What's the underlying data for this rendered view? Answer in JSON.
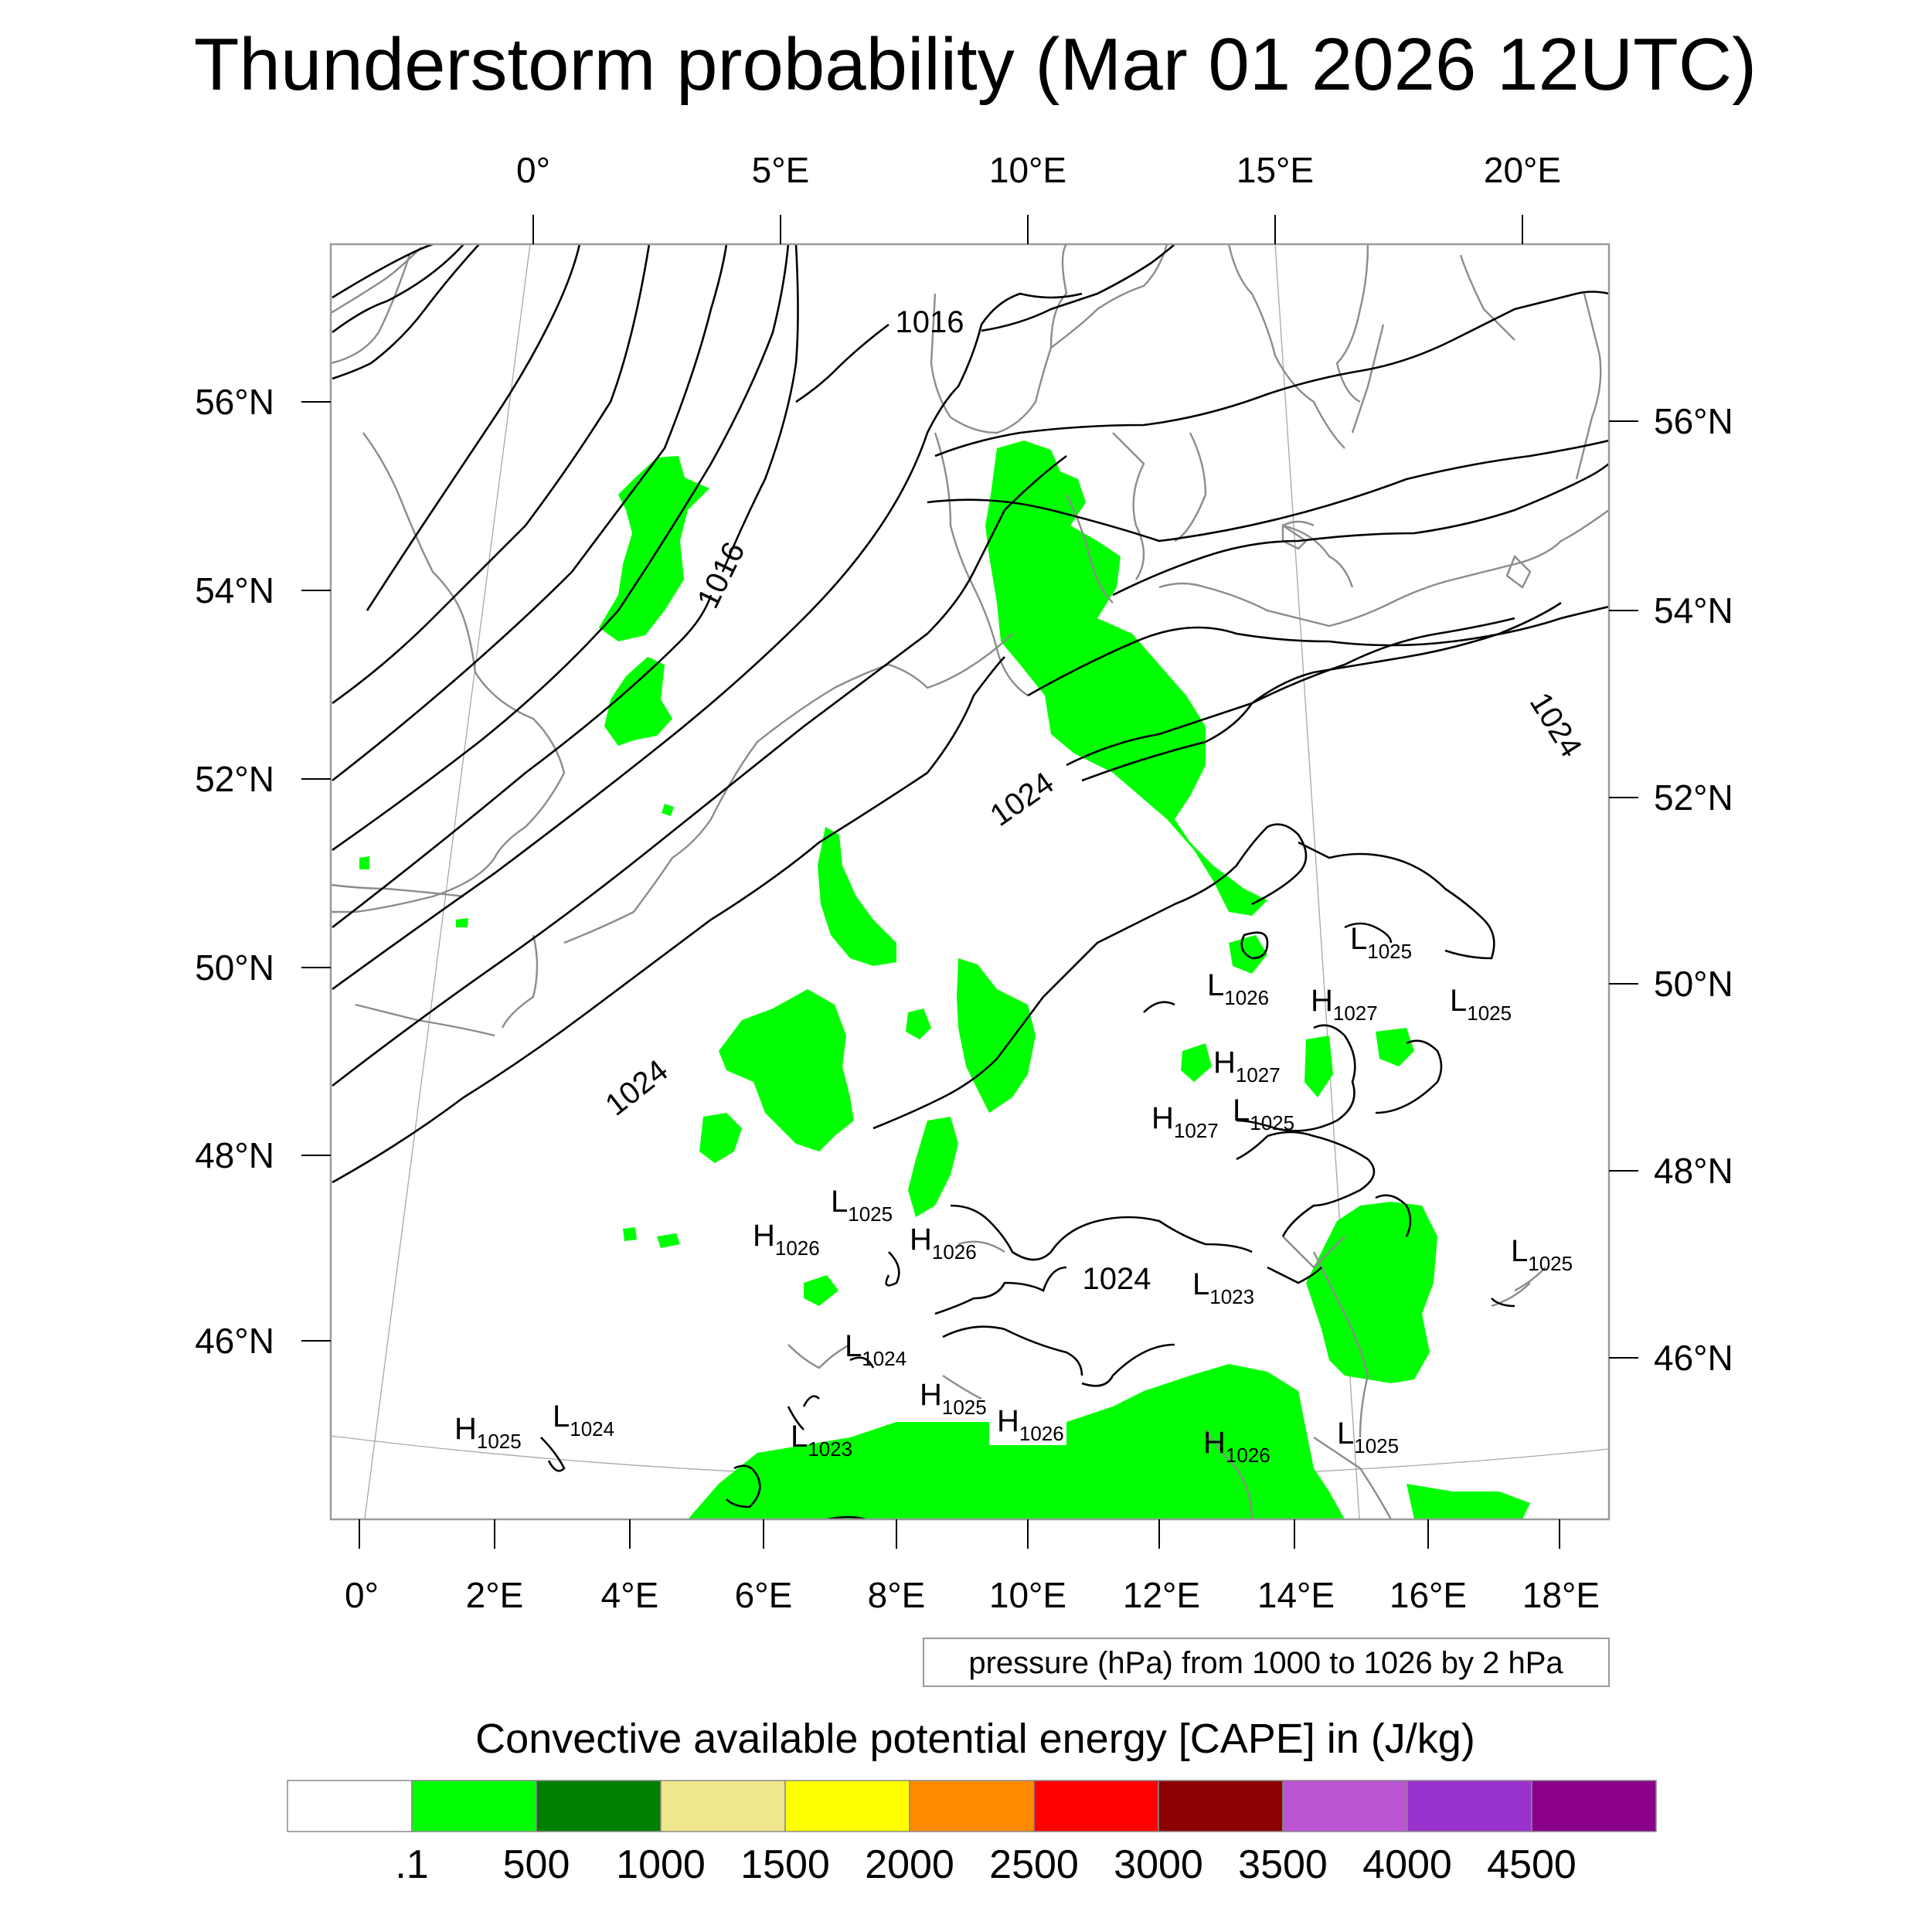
{
  "title": "Thunderstorm probability (Mar 01 2026 12UTC)",
  "map": {
    "top_longitude_labels": [
      "0°",
      "5°E",
      "10°E",
      "15°E",
      "20°E"
    ],
    "bottom_longitude_labels": [
      "0°",
      "2°E",
      "4°E",
      "6°E",
      "8°E",
      "10°E",
      "12°E",
      "14°E",
      "16°E",
      "18°E"
    ],
    "left_latitude_labels": [
      "56°N",
      "54°N",
      "52°N",
      "50°N",
      "48°N",
      "46°N"
    ],
    "right_latitude_labels": [
      "56°N",
      "54°N",
      "52°N",
      "50°N",
      "48°N",
      "46°N"
    ],
    "isobar_labels": [
      "1016",
      "1016",
      "1024",
      "1024",
      "1024",
      "1024"
    ],
    "pressure_centers": [
      {
        "type": "L",
        "value": "1025"
      },
      {
        "type": "L",
        "value": "1026"
      },
      {
        "type": "H",
        "value": "1027"
      },
      {
        "type": "L",
        "value": "1025"
      },
      {
        "type": "H",
        "value": "1027"
      },
      {
        "type": "H",
        "value": "1027"
      },
      {
        "type": "L",
        "value": "1025"
      },
      {
        "type": "L",
        "value": "1025"
      },
      {
        "type": "H",
        "value": "1026"
      },
      {
        "type": "H",
        "value": "1026"
      },
      {
        "type": "L",
        "value": "1025"
      },
      {
        "type": "L",
        "value": "1023"
      },
      {
        "type": "L",
        "value": "1024"
      },
      {
        "type": "H",
        "value": "1025"
      },
      {
        "type": "H",
        "value": "1026"
      },
      {
        "type": "H",
        "value": "1025"
      },
      {
        "type": "L",
        "value": "1024"
      },
      {
        "type": "L",
        "value": "1023"
      },
      {
        "type": "H",
        "value": "1026"
      },
      {
        "type": "L",
        "value": "1025"
      }
    ]
  },
  "info": "pressure (hPa) from 1000 to 1026 by 2 hPa",
  "colorbar": {
    "title": "Convective available potential energy [CAPE] in (J/kg)",
    "colors": [
      "#ffffff",
      "#00ff00",
      "#008000",
      "#f0e68c",
      "#ffff00",
      "#ff8c00",
      "#ff0000",
      "#8b0000",
      "#ba55d3",
      "#9932cc",
      "#8b008b"
    ],
    "labels": [
      ".1",
      "500",
      "1000",
      "1500",
      "2000",
      "2500",
      "3000",
      "3500",
      "4000",
      "4500"
    ]
  }
}
